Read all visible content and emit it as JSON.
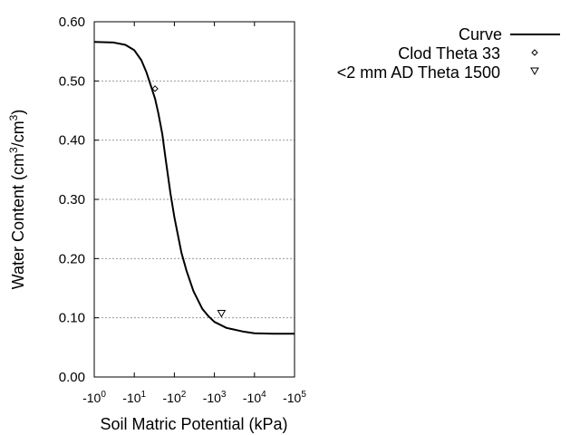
{
  "chart_data": {
    "type": "line",
    "x_scale": "log",
    "xlabel": "Soil Matric Potential (kPa)",
    "ylabel_main": "Water Content (cm",
    "ylabel_sup1": "3",
    "ylabel_mid": "/cm",
    "ylabel_sup2": "3",
    "ylabel_end": ")",
    "ylim": [
      0,
      0.6
    ],
    "xlim": [
      1,
      100000
    ],
    "grid": "horizontal dotted",
    "legend_position": "top-right outside plot",
    "y_ticks": [
      {
        "value": 0.0,
        "label": "0.00"
      },
      {
        "value": 0.1,
        "label": "0.10"
      },
      {
        "value": 0.2,
        "label": "0.20"
      },
      {
        "value": 0.3,
        "label": "0.30"
      },
      {
        "value": 0.4,
        "label": "0.40"
      },
      {
        "value": 0.5,
        "label": "0.50"
      },
      {
        "value": 0.6,
        "label": "0.60"
      }
    ],
    "x_ticks": [
      {
        "value": 1,
        "base": "-10",
        "exp": "0"
      },
      {
        "value": 10,
        "base": "-10",
        "exp": "1"
      },
      {
        "value": 100,
        "base": "-10",
        "exp": "2"
      },
      {
        "value": 1000,
        "base": "-10",
        "exp": "3"
      },
      {
        "value": 10000,
        "base": "-10",
        "exp": "4"
      },
      {
        "value": 100000,
        "base": "-10",
        "exp": "5"
      }
    ],
    "series": [
      {
        "name": "Curve",
        "kind": "line",
        "color": "#000000",
        "x": [
          1,
          3,
          6,
          10,
          15,
          20,
          25,
          33,
          40,
          50,
          60,
          80,
          100,
          150,
          200,
          300,
          500,
          700,
          1000,
          2000,
          5000,
          10000,
          30000,
          100000
        ],
        "y": [
          0.566,
          0.565,
          0.561,
          0.552,
          0.535,
          0.515,
          0.495,
          0.47,
          0.445,
          0.41,
          0.37,
          0.31,
          0.27,
          0.21,
          0.18,
          0.145,
          0.115,
          0.103,
          0.093,
          0.083,
          0.077,
          0.074,
          0.073,
          0.073
        ]
      },
      {
        "name": "Clod Theta 33",
        "kind": "marker",
        "marker": "diamond",
        "x": [
          33
        ],
        "y": [
          0.487
        ]
      },
      {
        "name": "<2 mm AD Theta 1500",
        "kind": "marker",
        "marker": "triangle-down",
        "x": [
          1500
        ],
        "y": [
          0.108
        ]
      }
    ]
  }
}
